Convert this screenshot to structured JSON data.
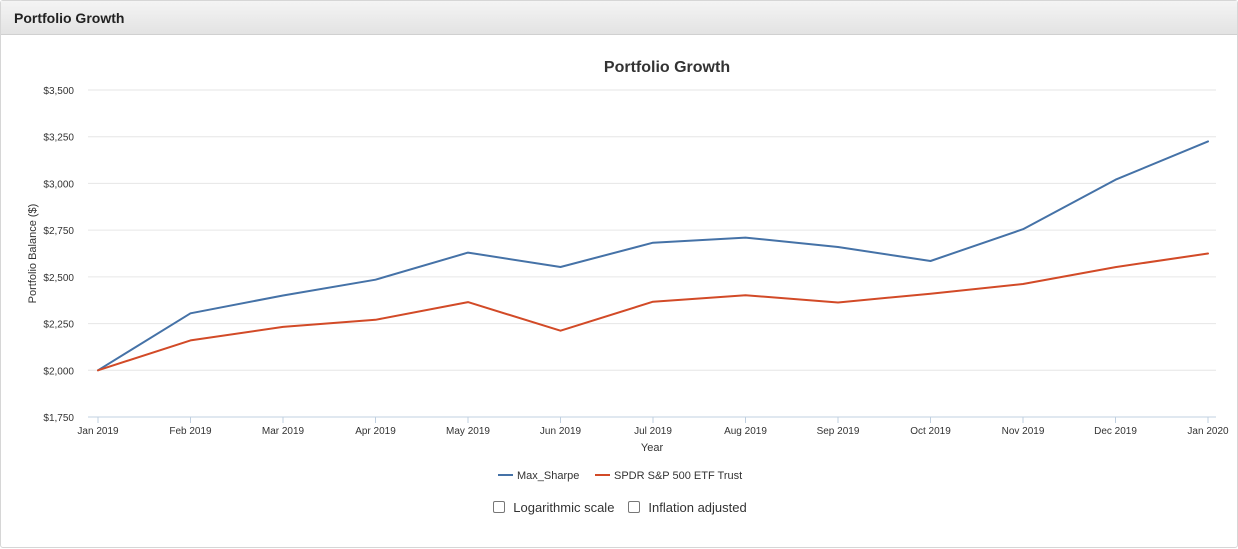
{
  "panel": {
    "title": "Portfolio Growth"
  },
  "chart_data": {
    "type": "line",
    "title": "Portfolio Growth",
    "xlabel": "Year",
    "ylabel": "Portfolio Balance ($)",
    "categories": [
      "Jan 2019",
      "Feb 2019",
      "Mar 2019",
      "Apr 2019",
      "May 2019",
      "Jun 2019",
      "Jul 2019",
      "Aug 2019",
      "Sep 2019",
      "Oct 2019",
      "Nov 2019",
      "Dec 2019",
      "Jan 2020"
    ],
    "ylim": [
      1750,
      3500
    ],
    "yticks": [
      1750,
      2000,
      2250,
      2500,
      2750,
      3000,
      3250,
      3500
    ],
    "ytick_labels": [
      "$1,750",
      "$2,000",
      "$2,250",
      "$2,500",
      "$2,750",
      "$3,000",
      "$3,250",
      "$3,500"
    ],
    "grid": true,
    "legend_position": "bottom",
    "series": [
      {
        "name": "Max_Sharpe",
        "color": "#4572a7",
        "values": [
          2000,
          2305,
          2400,
          2485,
          2630,
          2553,
          2683,
          2710,
          2660,
          2585,
          2755,
          3020,
          3225
        ]
      },
      {
        "name": "SPDR S&P 500 ETF Trust",
        "color": "#d24a27",
        "values": [
          2000,
          2160,
          2232,
          2270,
          2365,
          2212,
          2367,
          2402,
          2363,
          2410,
          2462,
          2552,
          2625
        ]
      }
    ]
  },
  "controls": {
    "log_scale_label": "Logarithmic scale",
    "inflation_label": "Inflation adjusted",
    "log_scale_checked": false,
    "inflation_checked": false
  }
}
